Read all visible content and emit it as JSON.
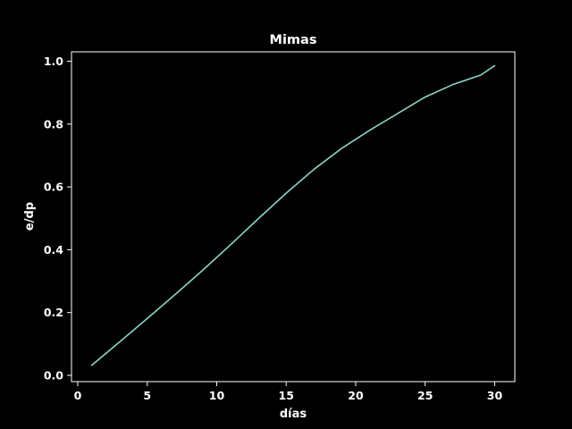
{
  "chart_data": {
    "type": "line",
    "title": "Mimas",
    "xlabel": "días",
    "ylabel": "e/dp",
    "xlim": [
      -0.45,
      31.45
    ],
    "ylim": [
      -0.02,
      1.03
    ],
    "xticks": [
      0,
      5,
      10,
      15,
      20,
      25,
      30
    ],
    "yticks": [
      0.0,
      0.2,
      0.4,
      0.6,
      0.8,
      1.0
    ],
    "xtick_labels": [
      "0",
      "5",
      "10",
      "15",
      "20",
      "25",
      "30"
    ],
    "ytick_labels": [
      "0.0",
      "0.2",
      "0.4",
      "0.6",
      "0.8",
      "1.0"
    ],
    "grid": false,
    "colors": {
      "background": "#000000",
      "axes": "#ffffff",
      "text": "#ffffff",
      "line": "#8dd3c7"
    },
    "series": [
      {
        "x": [
          1,
          3,
          5,
          7,
          9,
          11,
          13,
          15,
          17,
          19,
          21,
          23,
          25,
          27,
          29,
          30
        ],
        "y": [
          0.032,
          0.106,
          0.181,
          0.257,
          0.335,
          0.416,
          0.499,
          0.58,
          0.656,
          0.723,
          0.78,
          0.833,
          0.886,
          0.926,
          0.956,
          0.986
        ]
      }
    ]
  }
}
